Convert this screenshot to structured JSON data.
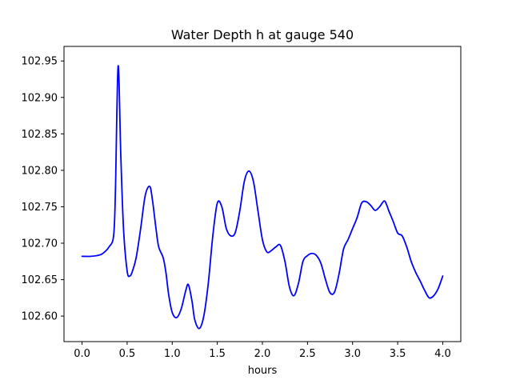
{
  "chart_data": {
    "type": "line",
    "title": "Water Depth h at gauge 540",
    "xlabel": "hours",
    "ylabel": "",
    "xlim": [
      -0.2,
      4.2
    ],
    "ylim": [
      102.565,
      102.97
    ],
    "xticks": [
      0.0,
      0.5,
      1.0,
      1.5,
      2.0,
      2.5,
      3.0,
      3.5,
      4.0
    ],
    "xtick_labels": [
      "0.0",
      "0.5",
      "1.0",
      "1.5",
      "2.0",
      "2.5",
      "3.0",
      "3.5",
      "4.0"
    ],
    "yticks": [
      102.6,
      102.65,
      102.7,
      102.75,
      102.8,
      102.85,
      102.9,
      102.95
    ],
    "ytick_labels": [
      "102.60",
      "102.65",
      "102.70",
      "102.75",
      "102.80",
      "102.85",
      "102.90",
      "102.95"
    ],
    "grid": false,
    "color": "#0000ff",
    "series": [
      {
        "name": "",
        "x": [
          0.0,
          0.1,
          0.2,
          0.25,
          0.3,
          0.35,
          0.37,
          0.4,
          0.43,
          0.46,
          0.5,
          0.53,
          0.56,
          0.6,
          0.65,
          0.7,
          0.75,
          0.78,
          0.82,
          0.85,
          0.9,
          0.93,
          0.96,
          1.0,
          1.05,
          1.1,
          1.15,
          1.18,
          1.22,
          1.25,
          1.3,
          1.35,
          1.4,
          1.45,
          1.5,
          1.55,
          1.6,
          1.65,
          1.7,
          1.75,
          1.8,
          1.85,
          1.9,
          1.95,
          2.0,
          2.05,
          2.1,
          2.15,
          2.2,
          2.25,
          2.3,
          2.35,
          2.4,
          2.45,
          2.5,
          2.55,
          2.6,
          2.65,
          2.7,
          2.75,
          2.8,
          2.85,
          2.9,
          2.95,
          3.0,
          3.05,
          3.1,
          3.15,
          3.2,
          3.25,
          3.3,
          3.35,
          3.38,
          3.4,
          3.45,
          3.5,
          3.55,
          3.6,
          3.65,
          3.7,
          3.75,
          3.8,
          3.85,
          3.9,
          3.95,
          4.0
        ],
        "y": [
          102.682,
          102.682,
          102.684,
          102.688,
          102.695,
          102.71,
          102.77,
          102.943,
          102.82,
          102.72,
          102.662,
          102.655,
          102.662,
          102.68,
          102.72,
          102.765,
          102.778,
          102.76,
          102.72,
          102.695,
          102.68,
          102.66,
          102.63,
          102.605,
          102.598,
          102.61,
          102.635,
          102.643,
          102.62,
          102.595,
          102.583,
          102.6,
          102.645,
          102.71,
          102.755,
          102.75,
          102.72,
          102.71,
          102.715,
          102.745,
          102.785,
          102.799,
          102.785,
          102.745,
          102.705,
          102.688,
          102.69,
          102.695,
          102.697,
          102.675,
          102.64,
          102.628,
          102.645,
          102.675,
          102.683,
          102.686,
          102.683,
          102.672,
          102.65,
          102.632,
          102.633,
          102.658,
          102.692,
          102.705,
          102.72,
          102.735,
          102.755,
          102.757,
          102.752,
          102.745,
          102.75,
          102.758,
          102.752,
          102.745,
          102.73,
          102.714,
          102.71,
          102.695,
          102.675,
          102.66,
          102.648,
          102.635,
          102.625,
          102.628,
          102.638,
          102.655
        ]
      }
    ]
  }
}
